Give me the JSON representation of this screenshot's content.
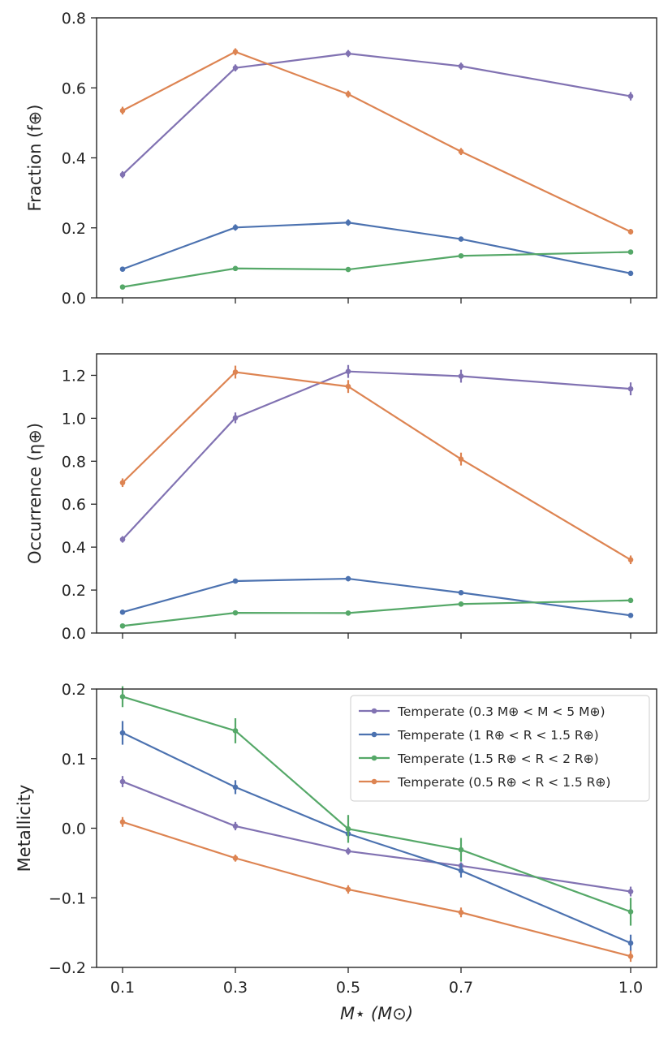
{
  "colors": {
    "purple": "#8172b2",
    "blue": "#4c72b0",
    "green": "#55a868",
    "orange": "#dd8452",
    "axis": "#262626"
  },
  "chart_data": [
    {
      "type": "line",
      "ylabel": "Fraction (f⊕)",
      "ylim": [
        0.0,
        0.8
      ],
      "yticks": [
        0.0,
        0.2,
        0.4,
        0.6,
        0.8
      ],
      "ytick_labels": [
        "0.0",
        "0.2",
        "0.4",
        "0.6",
        "0.8"
      ],
      "x": [
        0.1,
        0.3,
        0.5,
        0.7,
        1.0
      ],
      "xlim": [
        0.07,
        1.04
      ],
      "show_xtick_labels": false,
      "series": [
        {
          "color_key": "purple",
          "values": [
            0.352,
            0.657,
            0.698,
            0.662,
            0.576
          ],
          "errors": [
            0.01,
            0.01,
            0.01,
            0.01,
            0.012
          ]
        },
        {
          "color_key": "blue",
          "values": [
            0.082,
            0.201,
            0.215,
            0.168,
            0.07
          ],
          "errors": [
            0.005,
            0.009,
            0.009,
            0.007,
            0.004
          ]
        },
        {
          "color_key": "green",
          "values": [
            0.031,
            0.084,
            0.081,
            0.12,
            0.131
          ],
          "errors": [
            0.003,
            0.004,
            0.004,
            0.006,
            0.006
          ]
        },
        {
          "color_key": "orange",
          "values": [
            0.535,
            0.703,
            0.582,
            0.418,
            0.189
          ],
          "errors": [
            0.011,
            0.01,
            0.01,
            0.01,
            0.008
          ]
        }
      ]
    },
    {
      "type": "line",
      "ylabel": "Occurrence (η⊕)",
      "ylim": [
        0.0,
        1.3
      ],
      "yticks": [
        0.0,
        0.2,
        0.4,
        0.6,
        0.8,
        1.0,
        1.2
      ],
      "ytick_labels": [
        "0.0",
        "0.2",
        "0.4",
        "0.6",
        "0.8",
        "1.0",
        "1.2"
      ],
      "x": [
        0.1,
        0.3,
        0.5,
        0.7,
        1.0
      ],
      "xlim": [
        0.07,
        1.04
      ],
      "show_xtick_labels": false,
      "series": [
        {
          "color_key": "purple",
          "values": [
            0.436,
            1.002,
            1.218,
            1.196,
            1.137
          ],
          "errors": [
            0.015,
            0.025,
            0.03,
            0.03,
            0.03
          ]
        },
        {
          "color_key": "blue",
          "values": [
            0.097,
            0.242,
            0.253,
            0.188,
            0.082
          ],
          "errors": [
            0.006,
            0.01,
            0.012,
            0.009,
            0.005
          ]
        },
        {
          "color_key": "green",
          "values": [
            0.033,
            0.094,
            0.093,
            0.135,
            0.152
          ],
          "errors": [
            0.003,
            0.005,
            0.005,
            0.007,
            0.008
          ]
        },
        {
          "color_key": "orange",
          "values": [
            0.7,
            1.215,
            1.148,
            0.81,
            0.341
          ],
          "errors": [
            0.02,
            0.03,
            0.03,
            0.03,
            0.02
          ]
        }
      ]
    },
    {
      "type": "line",
      "ylabel": "Metallicity",
      "xlabel": "M⋆ (M⊙)",
      "ylim": [
        -0.2,
        0.2
      ],
      "yticks": [
        -0.2,
        -0.1,
        0.0,
        0.1,
        0.2
      ],
      "ytick_labels": [
        "−0.2",
        "−0.1",
        "0.0",
        "0.1",
        "0.2"
      ],
      "x": [
        0.1,
        0.3,
        0.5,
        0.7,
        1.0
      ],
      "xlim": [
        0.07,
        1.04
      ],
      "xticks": [
        0.1,
        0.3,
        0.5,
        0.7,
        1.0
      ],
      "xtick_labels": [
        "0.1",
        "0.3",
        "0.5",
        "0.7",
        "1.0"
      ],
      "show_xtick_labels": true,
      "legend": "top-right",
      "series": [
        {
          "name": "Temperate (0.3 M⊕ < M < 5 M⊕)",
          "color_key": "purple",
          "values": [
            0.067,
            0.003,
            -0.033,
            -0.054,
            -0.091
          ],
          "errors": [
            0.008,
            0.006,
            0.005,
            0.005,
            0.007
          ]
        },
        {
          "name": "Temperate (1 R⊕ < R < 1.5 R⊕)",
          "color_key": "blue",
          "values": [
            0.137,
            0.059,
            -0.008,
            -0.061,
            -0.165
          ],
          "errors": [
            0.017,
            0.01,
            0.008,
            0.01,
            0.012
          ]
        },
        {
          "name": "Temperate (1.5 R⊕ < R < 2 R⊕)",
          "color_key": "green",
          "values": [
            0.189,
            0.14,
            -0.001,
            -0.031,
            -0.12
          ],
          "errors": [
            0.015,
            0.018,
            0.02,
            0.017,
            0.02
          ]
        },
        {
          "name": "Temperate (0.5 R⊕ < R < 1.5 R⊕)",
          "color_key": "orange",
          "values": [
            0.009,
            -0.043,
            -0.088,
            -0.121,
            -0.184
          ],
          "errors": [
            0.007,
            0.005,
            0.006,
            0.007,
            0.008
          ]
        }
      ]
    }
  ]
}
